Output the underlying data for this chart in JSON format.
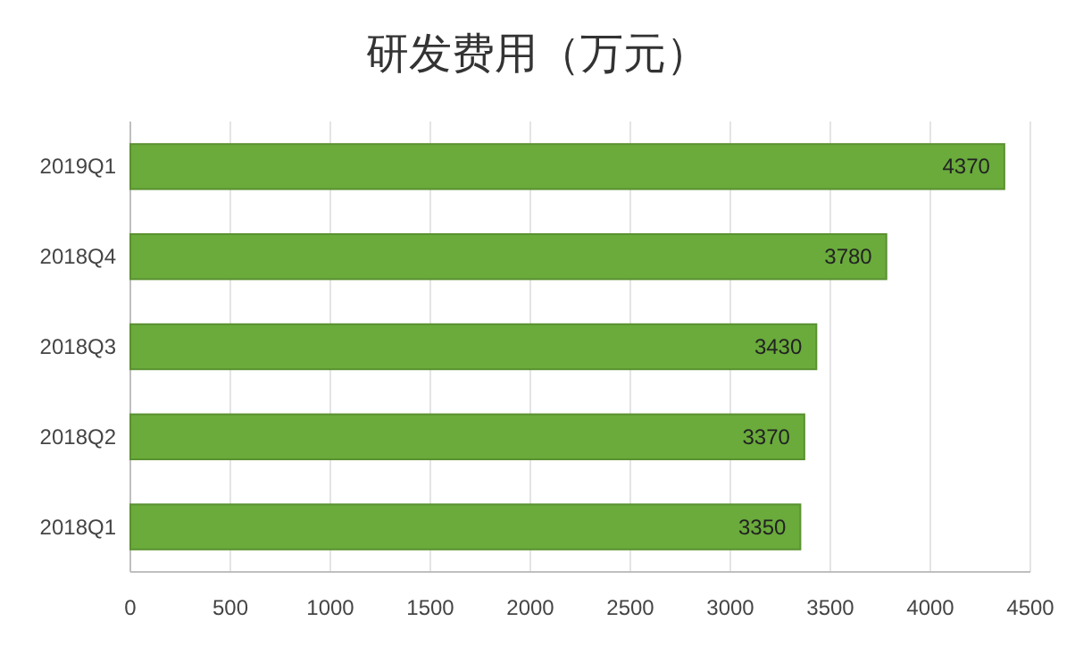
{
  "chart_data": {
    "type": "bar",
    "orientation": "horizontal",
    "title": "研发费用（万元）",
    "categories": [
      "2019Q1",
      "2018Q4",
      "2018Q3",
      "2018Q2",
      "2018Q1"
    ],
    "values": [
      4370,
      3780,
      3430,
      3370,
      3350
    ],
    "color": "#6aab3c",
    "xlim": [
      0,
      4500
    ],
    "xticks": [
      0,
      500,
      1000,
      1500,
      2000,
      2500,
      3000,
      3500,
      4000,
      4500
    ],
    "grid": "x",
    "data_labels": true
  }
}
